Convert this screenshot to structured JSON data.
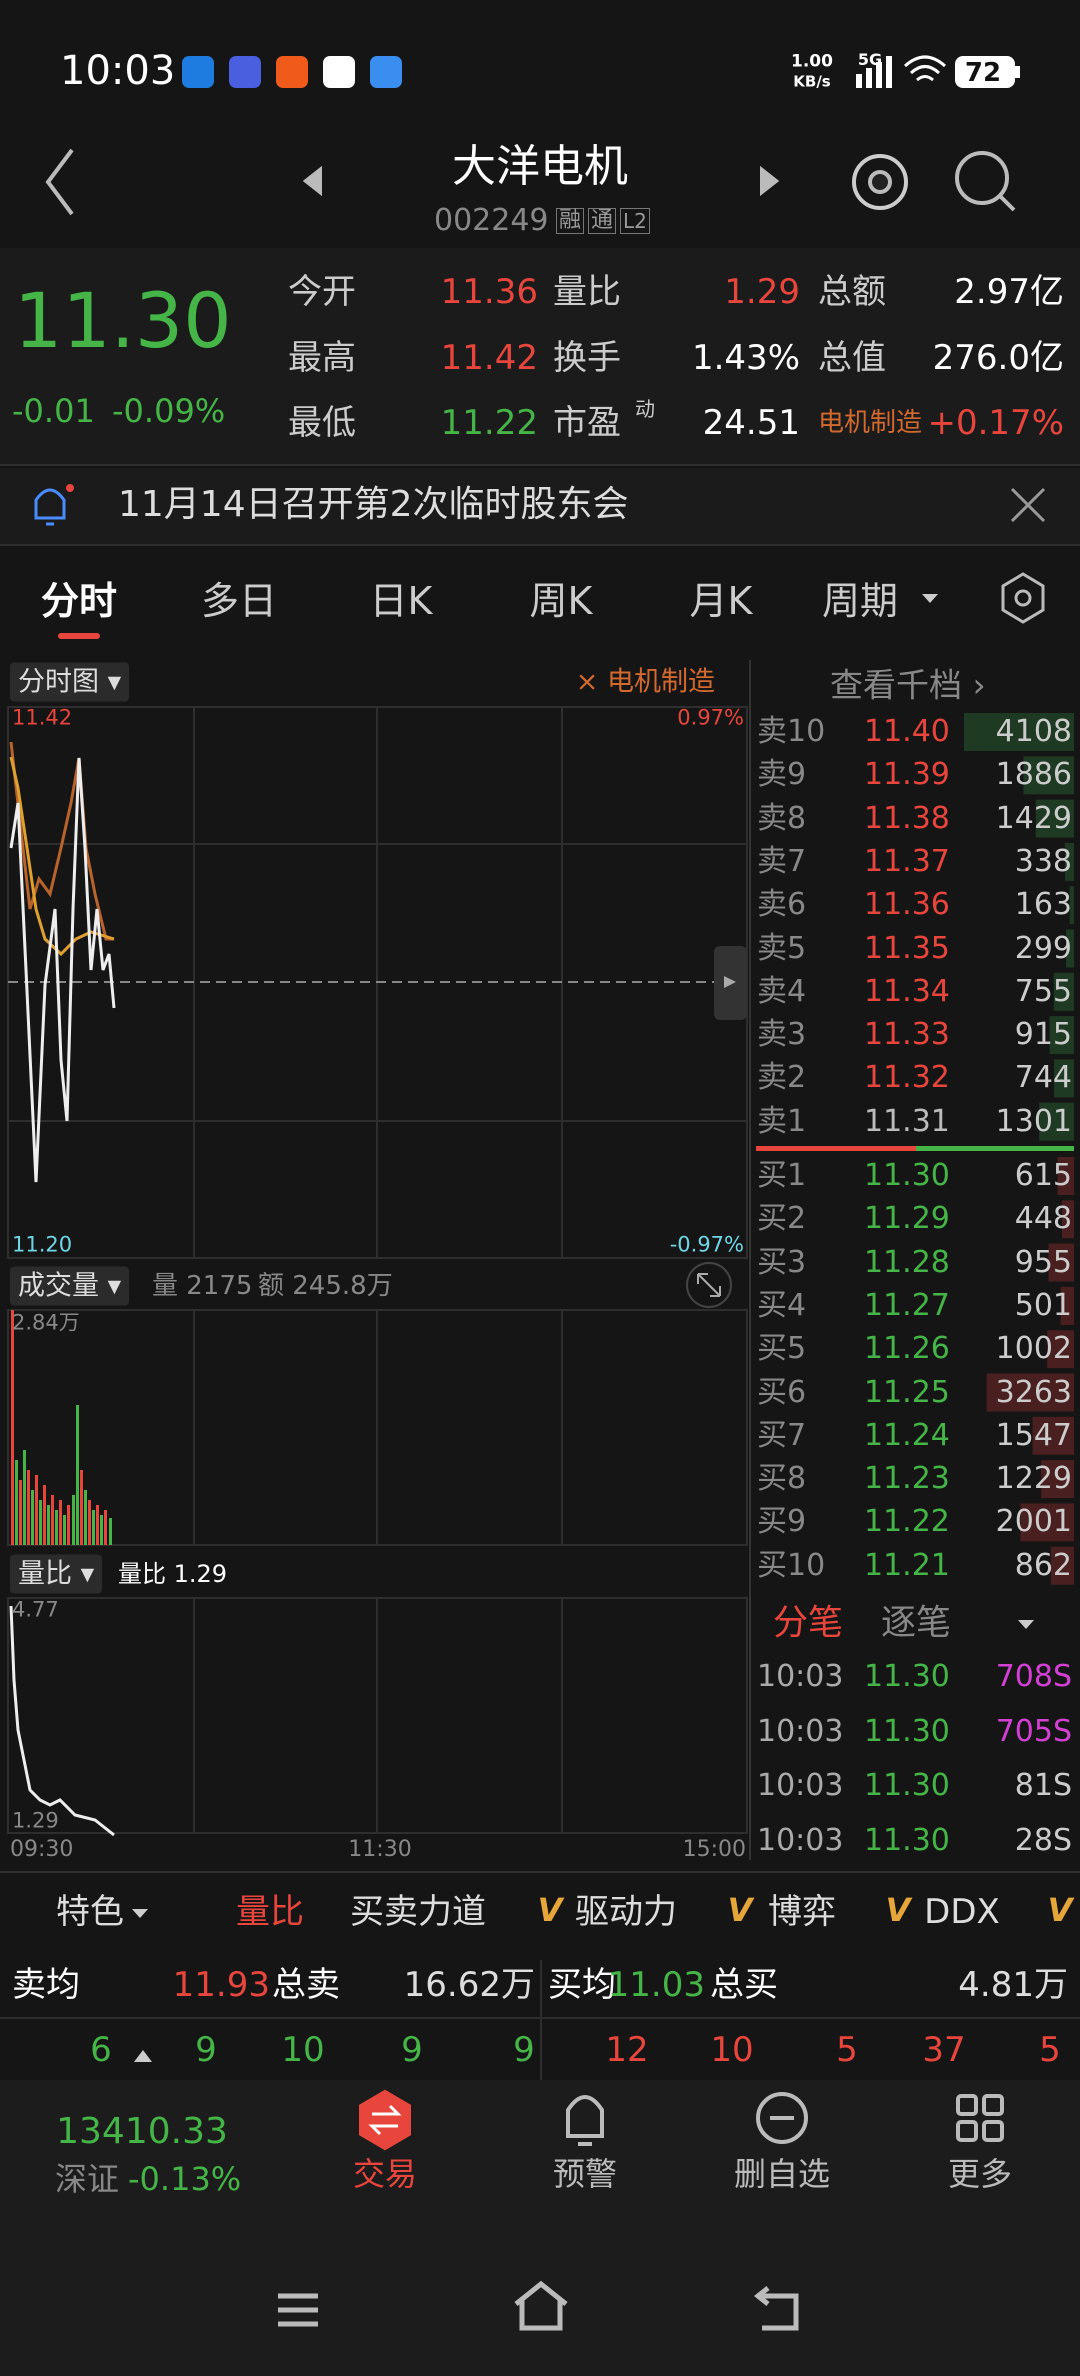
{
  "status": {
    "time": "10:03",
    "speed": "1.00",
    "speed_unit": "KB/s",
    "network": "5G",
    "battery": "72"
  },
  "header": {
    "title": "大洋电机",
    "code": "002249",
    "badges": [
      "融",
      "通",
      "L2"
    ]
  },
  "quote": {
    "price": "11.30",
    "change": "-0.01",
    "change_pct": "-0.09%",
    "stats": [
      [
        {
          "label": "今开",
          "value": "11.36"
        },
        {
          "label": "量比",
          "value": "1.29"
        },
        {
          "label": "总额",
          "value": "2.97亿"
        }
      ],
      [
        {
          "label": "最高",
          "value": "11.42"
        },
        {
          "label": "换手",
          "value": "1.43%"
        },
        {
          "label": "总值",
          "value": "276.0亿"
        }
      ],
      [
        {
          "label": "最低",
          "value": "11.22"
        },
        {
          "label": "市盈",
          "sup": "动",
          "value": "24.51"
        },
        {
          "label": "电机制造",
          "value": "+0.17%"
        }
      ]
    ]
  },
  "notice": "11月14日召开第2次临时股东会",
  "tabs": [
    "分时",
    "多日",
    "日K",
    "周K",
    "月K",
    "周期"
  ],
  "chart": {
    "selector": "分时图",
    "sector": "电机制造",
    "price_top": "11.42",
    "pct_top": "0.97%",
    "price_bottom": "11.20",
    "pct_bottom": "-0.97%",
    "volume": {
      "selector": "成交量",
      "qty": "量 2175",
      "amount": "额 245.8万",
      "max": "2.84万"
    },
    "ratio": {
      "selector": "量比",
      "info": "量比 1.29",
      "max": "4.77",
      "min": "1.29"
    },
    "times": [
      "09:30",
      "11:30",
      "15:00"
    ]
  },
  "orderbook": {
    "title": "查看千档",
    "sell": [
      {
        "label": "卖10",
        "price": "11.40",
        "volume": 4108
      },
      {
        "label": "卖9",
        "price": "11.39",
        "volume": 1886
      },
      {
        "label": "卖8",
        "price": "11.38",
        "volume": 1429
      },
      {
        "label": "卖7",
        "price": "11.37",
        "volume": 338
      },
      {
        "label": "卖6",
        "price": "11.36",
        "volume": 163
      },
      {
        "label": "卖5",
        "price": "11.35",
        "volume": 299
      },
      {
        "label": "卖4",
        "price": "11.34",
        "volume": 755
      },
      {
        "label": "卖3",
        "price": "11.33",
        "volume": 915
      },
      {
        "label": "卖2",
        "price": "11.32",
        "volume": 744
      },
      {
        "label": "卖1",
        "price": "11.31",
        "volume": 1301
      }
    ],
    "buy": [
      {
        "label": "买1",
        "price": "11.30",
        "volume": 615
      },
      {
        "label": "买2",
        "price": "11.29",
        "volume": 448
      },
      {
        "label": "买3",
        "price": "11.28",
        "volume": 955
      },
      {
        "label": "买4",
        "price": "11.27",
        "volume": 501
      },
      {
        "label": "买5",
        "price": "11.26",
        "volume": 1002
      },
      {
        "label": "买6",
        "price": "11.25",
        "volume": 3263
      },
      {
        "label": "买7",
        "price": "11.24",
        "volume": 1547
      },
      {
        "label": "买8",
        "price": "11.23",
        "volume": 1229
      },
      {
        "label": "买9",
        "price": "11.22",
        "volume": 2001
      },
      {
        "label": "买10",
        "price": "11.21",
        "volume": 862
      }
    ]
  },
  "trades": {
    "tabs": [
      "分笔",
      "逐笔"
    ],
    "rows": [
      {
        "time": "10:03",
        "price": "11.30",
        "volume": "708S",
        "color": "#d43fd4"
      },
      {
        "time": "10:03",
        "price": "11.30",
        "volume": "705S",
        "color": "#d43fd4"
      },
      {
        "time": "10:03",
        "price": "11.30",
        "volume": "81S",
        "color": "#cccccc"
      },
      {
        "time": "10:03",
        "price": "11.30",
        "volume": "28S",
        "color": "#cccccc"
      }
    ]
  },
  "indicators": {
    "items": [
      "特色",
      "量比",
      "买卖力道",
      "驱动力",
      "博弈",
      "DDX"
    ],
    "vip_mark": "V"
  },
  "summary": {
    "sell_avg_label": "卖均",
    "sell_avg": "11.93",
    "sell_total_label": "总卖",
    "sell_total": "16.62万",
    "buy_avg_label": "买均",
    "buy_avg": "11.03",
    "buy_total_label": "总买",
    "buy_total": "4.81万",
    "sell_counts": [
      6,
      9,
      10,
      9,
      9
    ],
    "buy_counts": [
      12,
      10,
      5,
      37,
      5
    ]
  },
  "bottom": {
    "index_value": "13410.33",
    "index_name": "深证",
    "index_change": "-0.13%",
    "nav": [
      "交易",
      "预警",
      "删自选",
      "更多"
    ]
  },
  "colors": {
    "up": "#e8453c",
    "down": "#44b546",
    "flat": "#bbbbbb"
  }
}
